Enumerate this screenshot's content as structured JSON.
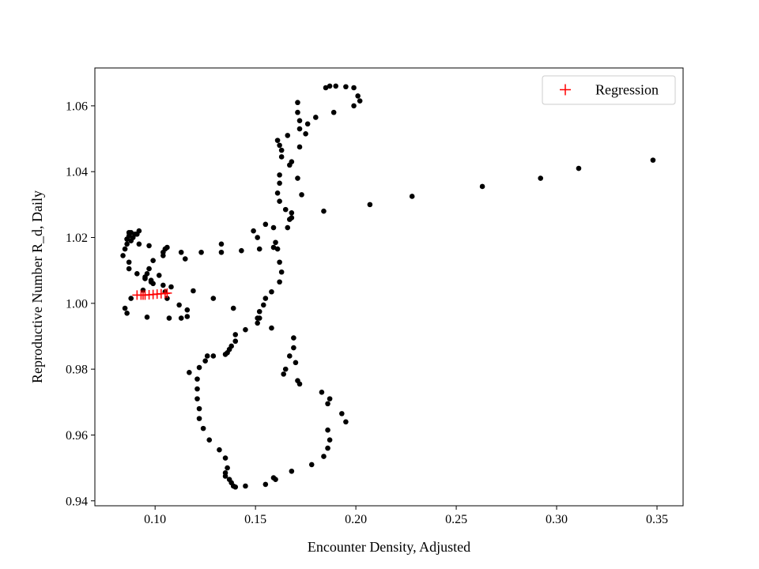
{
  "chart_data": {
    "type": "scatter",
    "title": "",
    "xlabel": "Encounter Density, Adjusted",
    "ylabel": "Reproductive Number R_d, Daily",
    "xlim": [
      0.07,
      0.363
    ],
    "ylim": [
      0.9385,
      1.0715
    ],
    "xticks": [
      0.1,
      0.15,
      0.2,
      0.25,
      0.3,
      0.35
    ],
    "xtick_labels": [
      "0.10",
      "0.15",
      "0.20",
      "0.25",
      "0.30",
      "0.35"
    ],
    "yticks": [
      0.94,
      0.96,
      0.98,
      1.0,
      1.02,
      1.04,
      1.06
    ],
    "ytick_labels": [
      "0.94",
      "0.96",
      "0.98",
      "1.00",
      "1.02",
      "1.04",
      "1.06"
    ],
    "grid": false,
    "legend": {
      "position": "top-right",
      "entries": [
        {
          "label": "Regression",
          "marker": "+",
          "color": "#ff0000"
        }
      ]
    },
    "series": [
      {
        "marker": "circle",
        "color": "#000000",
        "points": [
          [
            0.348,
            1.0435
          ],
          [
            0.311,
            1.041
          ],
          [
            0.292,
            1.038
          ],
          [
            0.263,
            1.0355
          ],
          [
            0.228,
            1.0325
          ],
          [
            0.207,
            1.03
          ],
          [
            0.184,
            1.028
          ],
          [
            0.185,
            1.0655
          ],
          [
            0.187,
            1.066
          ],
          [
            0.19,
            1.066
          ],
          [
            0.195,
            1.0658
          ],
          [
            0.199,
            1.0655
          ],
          [
            0.201,
            1.063
          ],
          [
            0.202,
            1.0615
          ],
          [
            0.199,
            1.06
          ],
          [
            0.189,
            1.058
          ],
          [
            0.18,
            1.0565
          ],
          [
            0.176,
            1.0545
          ],
          [
            0.171,
            1.061
          ],
          [
            0.171,
            1.058
          ],
          [
            0.172,
            1.0555
          ],
          [
            0.172,
            1.053
          ],
          [
            0.175,
            1.0515
          ],
          [
            0.172,
            1.0475
          ],
          [
            0.168,
            1.043
          ],
          [
            0.167,
            1.042
          ],
          [
            0.166,
            1.051
          ],
          [
            0.161,
            1.0495
          ],
          [
            0.162,
            1.048
          ],
          [
            0.163,
            1.0465
          ],
          [
            0.163,
            1.0445
          ],
          [
            0.171,
            1.038
          ],
          [
            0.173,
            1.033
          ],
          [
            0.162,
            1.039
          ],
          [
            0.162,
            1.0365
          ],
          [
            0.161,
            1.0335
          ],
          [
            0.162,
            1.031
          ],
          [
            0.165,
            1.0285
          ],
          [
            0.168,
            1.0275
          ],
          [
            0.168,
            1.026
          ],
          [
            0.167,
            1.0255
          ],
          [
            0.166,
            1.023
          ],
          [
            0.159,
            1.023
          ],
          [
            0.155,
            1.024
          ],
          [
            0.149,
            1.022
          ],
          [
            0.151,
            1.02
          ],
          [
            0.16,
            1.0185
          ],
          [
            0.159,
            1.017
          ],
          [
            0.161,
            1.0165
          ],
          [
            0.152,
            1.0165
          ],
          [
            0.143,
            1.016
          ],
          [
            0.133,
            1.018
          ],
          [
            0.133,
            1.0155
          ],
          [
            0.123,
            1.0155
          ],
          [
            0.113,
            1.0155
          ],
          [
            0.115,
            1.0135
          ],
          [
            0.162,
            1.0125
          ],
          [
            0.163,
            1.0095
          ],
          [
            0.162,
            1.0065
          ],
          [
            0.158,
            1.0035
          ],
          [
            0.155,
            1.0015
          ],
          [
            0.154,
            0.9995
          ],
          [
            0.152,
            0.9975
          ],
          [
            0.151,
            0.9955
          ],
          [
            0.152,
            0.9955
          ],
          [
            0.151,
            0.994
          ],
          [
            0.145,
            0.992
          ],
          [
            0.158,
            0.9925
          ],
          [
            0.14,
            0.9905
          ],
          [
            0.14,
            0.9885
          ],
          [
            0.138,
            0.987
          ],
          [
            0.137,
            0.986
          ],
          [
            0.136,
            0.985
          ],
          [
            0.135,
            0.9845
          ],
          [
            0.129,
            0.984
          ],
          [
            0.126,
            0.984
          ],
          [
            0.125,
            0.9825
          ],
          [
            0.122,
            0.9805
          ],
          [
            0.117,
            0.979
          ],
          [
            0.121,
            0.977
          ],
          [
            0.121,
            0.974
          ],
          [
            0.121,
            0.971
          ],
          [
            0.122,
            0.968
          ],
          [
            0.122,
            0.965
          ],
          [
            0.124,
            0.962
          ],
          [
            0.127,
            0.9585
          ],
          [
            0.132,
            0.9555
          ],
          [
            0.135,
            0.953
          ],
          [
            0.136,
            0.95
          ],
          [
            0.135,
            0.9485
          ],
          [
            0.135,
            0.9475
          ],
          [
            0.137,
            0.9465
          ],
          [
            0.138,
            0.9455
          ],
          [
            0.139,
            0.9445
          ],
          [
            0.14,
            0.9442
          ],
          [
            0.145,
            0.9445
          ],
          [
            0.155,
            0.945
          ],
          [
            0.16,
            0.9465
          ],
          [
            0.159,
            0.947
          ],
          [
            0.168,
            0.949
          ],
          [
            0.178,
            0.951
          ],
          [
            0.184,
            0.9535
          ],
          [
            0.186,
            0.956
          ],
          [
            0.187,
            0.9585
          ],
          [
            0.186,
            0.9615
          ],
          [
            0.195,
            0.964
          ],
          [
            0.193,
            0.9665
          ],
          [
            0.186,
            0.9695
          ],
          [
            0.187,
            0.971
          ],
          [
            0.183,
            0.973
          ],
          [
            0.172,
            0.9755
          ],
          [
            0.171,
            0.9765
          ],
          [
            0.164,
            0.9785
          ],
          [
            0.165,
            0.98
          ],
          [
            0.17,
            0.982
          ],
          [
            0.167,
            0.984
          ],
          [
            0.169,
            0.9865
          ],
          [
            0.169,
            0.9895
          ],
          [
            0.084,
            1.0145
          ],
          [
            0.085,
            1.0165
          ],
          [
            0.086,
            1.018
          ],
          [
            0.086,
            1.0195
          ],
          [
            0.087,
            1.0205
          ],
          [
            0.088,
            1.0215
          ],
          [
            0.087,
            1.0215
          ],
          [
            0.09,
            1.021
          ],
          [
            0.091,
            1.021
          ],
          [
            0.092,
            1.022
          ],
          [
            0.089,
            1.02
          ],
          [
            0.086,
            1.0195
          ],
          [
            0.088,
            1.019
          ],
          [
            0.092,
            1.018
          ],
          [
            0.097,
            1.0175
          ],
          [
            0.105,
            1.0165
          ],
          [
            0.106,
            1.017
          ],
          [
            0.104,
            1.0155
          ],
          [
            0.104,
            1.0145
          ],
          [
            0.099,
            1.013
          ],
          [
            0.087,
            1.0125
          ],
          [
            0.087,
            1.0105
          ],
          [
            0.097,
            1.0105
          ],
          [
            0.096,
            1.009
          ],
          [
            0.091,
            1.009
          ],
          [
            0.095,
            1.008
          ],
          [
            0.095,
            1.0075
          ],
          [
            0.102,
            1.0085
          ],
          [
            0.098,
            1.007
          ],
          [
            0.098,
            1.0065
          ],
          [
            0.099,
            1.006
          ],
          [
            0.104,
            1.0055
          ],
          [
            0.108,
            1.005
          ],
          [
            0.105,
            1.0035
          ],
          [
            0.094,
            1.004
          ],
          [
            0.119,
            1.0038
          ],
          [
            0.106,
            1.0015
          ],
          [
            0.088,
            1.0015
          ],
          [
            0.129,
            1.0015
          ],
          [
            0.112,
            0.9995
          ],
          [
            0.085,
            0.9985
          ],
          [
            0.116,
            0.998
          ],
          [
            0.139,
            0.9985
          ],
          [
            0.086,
            0.997
          ],
          [
            0.116,
            0.996
          ],
          [
            0.113,
            0.9955
          ],
          [
            0.107,
            0.9955
          ],
          [
            0.096,
            0.9958
          ]
        ]
      },
      {
        "name": "Regression",
        "marker": "+",
        "color": "#ff0000",
        "points": [
          [
            0.091,
            1.0025
          ],
          [
            0.093,
            1.0025
          ],
          [
            0.094,
            1.0025
          ],
          [
            0.095,
            1.0025
          ],
          [
            0.097,
            1.0026
          ],
          [
            0.099,
            1.0027
          ],
          [
            0.101,
            1.0028
          ],
          [
            0.103,
            1.0029
          ],
          [
            0.105,
            1.003
          ],
          [
            0.106,
            1.0031
          ]
        ]
      }
    ]
  }
}
